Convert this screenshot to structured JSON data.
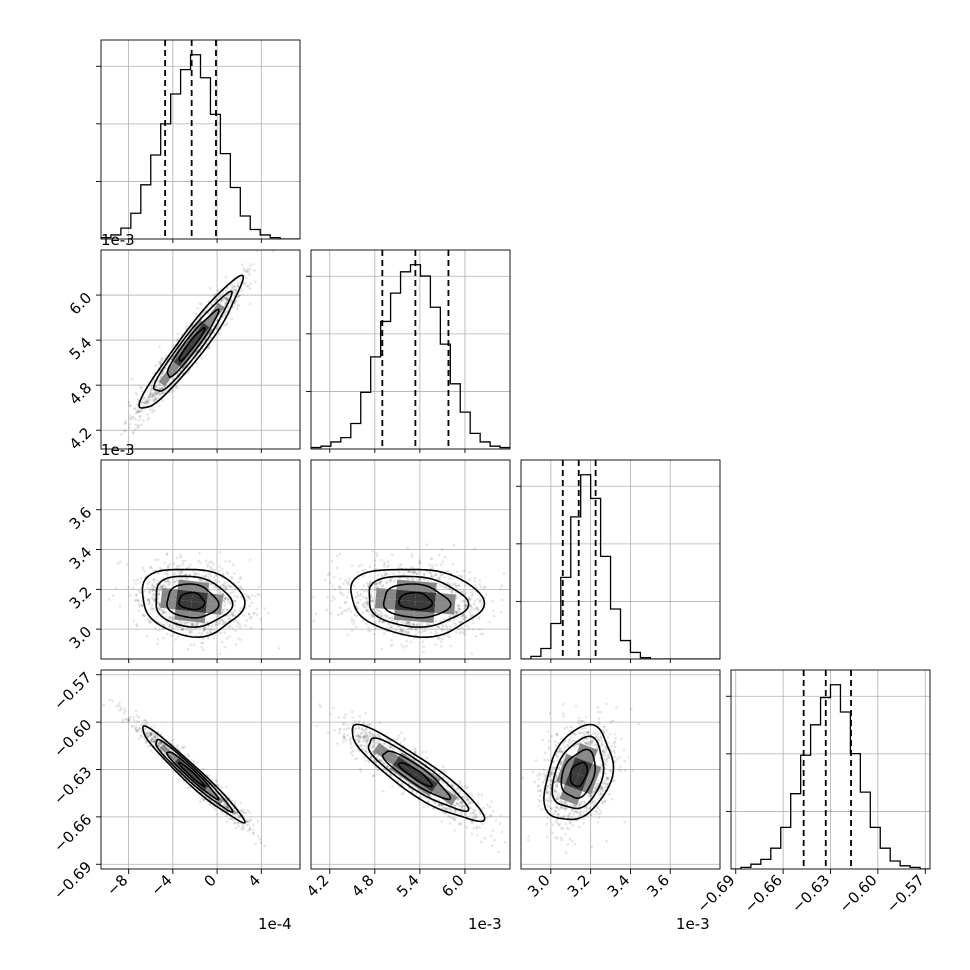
{
  "chart_data": {
    "type": "corner",
    "n_params": 4,
    "param_labels": [
      "",
      "",
      "",
      ""
    ],
    "offset_labels": [
      "1e-4",
      "1e-3",
      "1e-3",
      ""
    ],
    "ranges": [
      [
        -10.5,
        7.5
      ],
      [
        3.95,
        6.6
      ],
      [
        2.85,
        3.85
      ],
      [
        -0.693,
        -0.567
      ]
    ],
    "ticks": [
      {
        "values": [
          -8,
          -4,
          0,
          4
        ],
        "labels": [
          "−8",
          "−4",
          "0",
          "4"
        ]
      },
      {
        "values": [
          4.2,
          4.8,
          5.4,
          6.0
        ],
        "labels": [
          "4.2",
          "4.8",
          "5.4",
          "6.0"
        ]
      },
      {
        "values": [
          3.0,
          3.2,
          3.4,
          3.6
        ],
        "labels": [
          "3.0",
          "3.2",
          "3.4",
          "3.6"
        ]
      },
      {
        "values": [
          -0.69,
          -0.66,
          -0.63,
          -0.6,
          -0.57
        ],
        "labels": [
          "−0.69",
          "−0.66",
          "−0.63",
          "−0.60",
          "−0.57"
        ]
      }
    ],
    "quantiles": [
      [
        -4.7,
        -2.3,
        -0.1
      ],
      [
        4.9,
        5.34,
        5.78
      ],
      [
        3.06,
        3.14,
        3.225
      ],
      [
        -0.647,
        -0.633,
        -0.617
      ]
    ],
    "histograms": [
      {
        "bin_range": [
          -10.5,
          7.5
        ],
        "counts": [
          1,
          3,
          8,
          19,
          40,
          62,
          85,
          107,
          125,
          136,
          119,
          92,
          63,
          38,
          17,
          7,
          3,
          1,
          0,
          0
        ]
      },
      {
        "bin_range": [
          3.95,
          6.6
        ],
        "counts": [
          1,
          2,
          5,
          8,
          18,
          40,
          65,
          90,
          110,
          125,
          130,
          122,
          100,
          74,
          46,
          26,
          11,
          5,
          2,
          1
        ]
      },
      {
        "bin_range": [
          2.85,
          3.85
        ],
        "counts": [
          0,
          2,
          8,
          27,
          62,
          108,
          140,
          122,
          78,
          38,
          14,
          5,
          1,
          0,
          0,
          0,
          0,
          0,
          0,
          0
        ]
      },
      {
        "bin_range": [
          -0.693,
          -0.567
        ],
        "counts": [
          0,
          1,
          3,
          6,
          13,
          26,
          47,
          71,
          90,
          107,
          115,
          98,
          72,
          48,
          26,
          13,
          5,
          2,
          1,
          0
        ]
      }
    ],
    "pairs": [
      {
        "x_param": 0,
        "y_param": 1,
        "mean": [
          -2.3,
          5.34
        ],
        "sd": [
          2.3,
          0.44
        ],
        "corr": 0.95
      },
      {
        "x_param": 0,
        "y_param": 2,
        "mean": [
          -2.3,
          3.14
        ],
        "sd": [
          2.3,
          0.085
        ],
        "corr": -0.1
      },
      {
        "x_param": 1,
        "y_param": 2,
        "mean": [
          5.34,
          3.14
        ],
        "sd": [
          0.44,
          0.085
        ],
        "corr": -0.12
      },
      {
        "x_param": 0,
        "y_param": 3,
        "mean": [
          -2.3,
          -0.633
        ],
        "sd": [
          2.3,
          0.015
        ],
        "corr": -0.97
      },
      {
        "x_param": 1,
        "y_param": 3,
        "mean": [
          5.34,
          -0.633
        ],
        "sd": [
          0.44,
          0.015
        ],
        "corr": -0.9
      },
      {
        "x_param": 2,
        "y_param": 3,
        "mean": [
          3.14,
          -0.633
        ],
        "sd": [
          0.085,
          0.015
        ],
        "corr": 0.3
      }
    ],
    "contour_levels_sigma": [
      0.5,
      1.0,
      1.5,
      2.0
    ],
    "grid": true
  }
}
